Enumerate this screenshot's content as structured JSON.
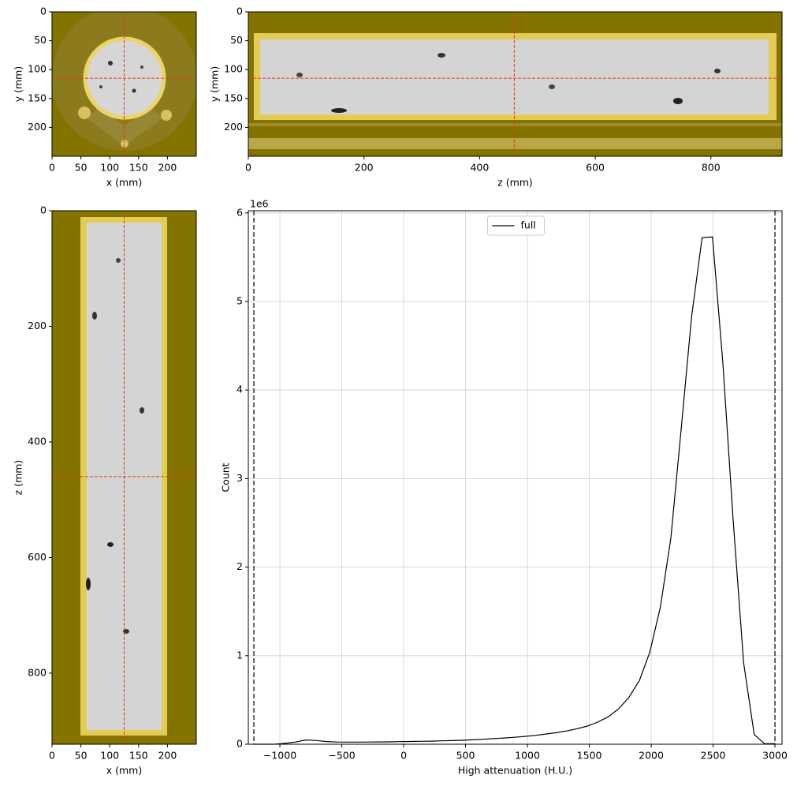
{
  "chart_data": [
    {
      "type": "image",
      "xlabel": "x (mm)",
      "ylabel": "y (mm)",
      "xlim": [
        0,
        250
      ],
      "ylim": [
        250,
        0
      ],
      "xticks": [
        0,
        50,
        100,
        150,
        200
      ],
      "yticks": [
        0,
        50,
        100,
        150,
        200
      ],
      "crosshair_x": 125,
      "crosshair_y": 115,
      "crosshair_color": "#e8332a"
    },
    {
      "type": "image",
      "xlabel": "z (mm)",
      "ylabel": "y (mm)",
      "xlim": [
        0,
        923
      ],
      "ylim": [
        250,
        0
      ],
      "xticks": [
        0,
        200,
        400,
        600,
        800
      ],
      "yticks": [
        0,
        50,
        100,
        150,
        200
      ],
      "crosshair_x": 460,
      "crosshair_y": 115,
      "crosshair_color": "#e8332a"
    },
    {
      "type": "image",
      "xlabel": "x (mm)",
      "ylabel": "z (mm)",
      "xlim": [
        0,
        250
      ],
      "ylim": [
        923,
        0
      ],
      "xticks": [
        0,
        50,
        100,
        150,
        200
      ],
      "yticks": [
        0,
        200,
        400,
        600,
        800
      ],
      "crosshair_x": 125,
      "crosshair_y": 460,
      "crosshair_color": "#e8332a"
    },
    {
      "type": "line",
      "xlabel": "High attenuation (H.U.)",
      "ylabel": "Count",
      "y_offset_label": "1e6",
      "xlim": [
        -1255,
        3057
      ],
      "ylim": [
        0,
        6025000
      ],
      "xticks": [
        {
          "value": -1000,
          "label": "−1000"
        },
        {
          "value": -500,
          "label": "−500"
        },
        0,
        500,
        1000,
        1500,
        2000,
        2500,
        3000
      ],
      "yticks": [
        {
          "value": 0,
          "label": "0"
        },
        {
          "value": 1000000,
          "label": "1"
        },
        {
          "value": 2000000,
          "label": "2"
        },
        {
          "value": 3000000,
          "label": "3"
        },
        {
          "value": 4000000,
          "label": "4"
        },
        {
          "value": 5000000,
          "label": "5"
        },
        {
          "value": 6000000,
          "label": "6"
        }
      ],
      "grid": true,
      "legend": "upper center",
      "vlines": [
        -1210,
        3000
      ],
      "x": [
        -1210,
        -1126,
        -1042,
        -957,
        -873,
        -789,
        -705,
        -621,
        -536,
        -452,
        -368,
        -284,
        -200,
        -115,
        -31,
        53,
        137,
        221,
        305,
        390,
        474,
        558,
        642,
        726,
        811,
        895,
        979,
        1063,
        1147,
        1232,
        1316,
        1400,
        1484,
        1568,
        1653,
        1737,
        1821,
        1905,
        1989,
        2074,
        2158,
        2242,
        2326,
        2411,
        2495,
        2579,
        2663,
        2747,
        2832,
        2916,
        3000
      ],
      "series": [
        {
          "name": "full",
          "color": "#000000",
          "values": [
            0,
            0,
            0,
            10000,
            25000,
            48000,
            42000,
            30000,
            25000,
            24000,
            24000,
            25000,
            26000,
            27000,
            29000,
            31000,
            33000,
            35000,
            38000,
            41000,
            45000,
            50000,
            56000,
            63000,
            70000,
            78000,
            88000,
            100000,
            115000,
            130000,
            150000,
            175000,
            205000,
            250000,
            310000,
            400000,
            530000,
            720000,
            1040000,
            1550000,
            2320000,
            3550000,
            4820000,
            5720000,
            5730000,
            4300000,
            2520000,
            920000,
            110000,
            5000,
            5000
          ]
        }
      ]
    }
  ]
}
